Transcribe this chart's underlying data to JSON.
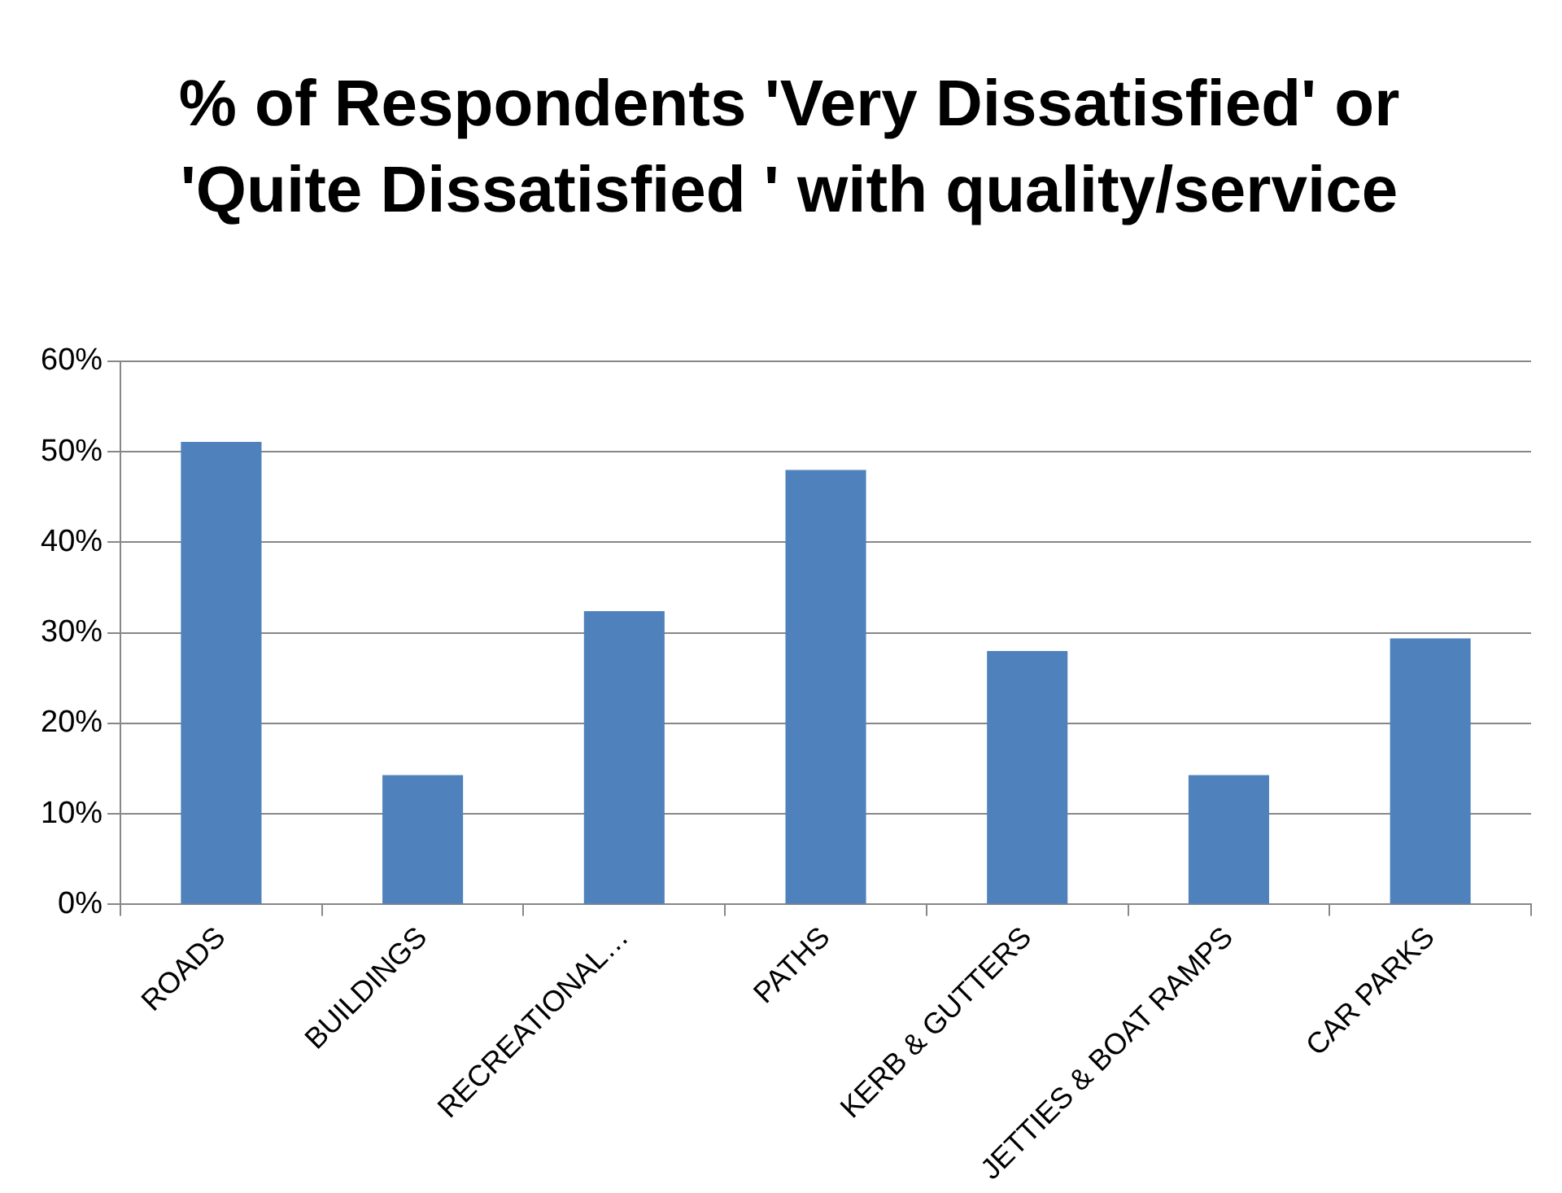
{
  "chart_data": {
    "type": "bar",
    "title": "% of Respondents 'Very Dissatisfied' or 'Quite Dissatisfied ' with quality/service",
    "categories": [
      "ROADS",
      "BUILDINGS",
      "RECREATIONAL…",
      "PATHS",
      "KERB & GUTTERS",
      "JETTIES & BOAT RAMPS",
      "CAR PARKS"
    ],
    "values": [
      51.1,
      14.3,
      32.4,
      48.0,
      28.0,
      14.3,
      29.4
    ],
    "color": "#4f81bd",
    "ylim": [
      0,
      60
    ],
    "yticks": [
      {
        "value": 0,
        "label": "0%"
      },
      {
        "value": 10,
        "label": "10%"
      },
      {
        "value": 20,
        "label": "20%"
      },
      {
        "value": 30,
        "label": "30%"
      },
      {
        "value": 40,
        "label": "40%"
      },
      {
        "value": 50,
        "label": "50%"
      },
      {
        "value": 60,
        "label": "60%"
      }
    ],
    "grid": "y"
  }
}
